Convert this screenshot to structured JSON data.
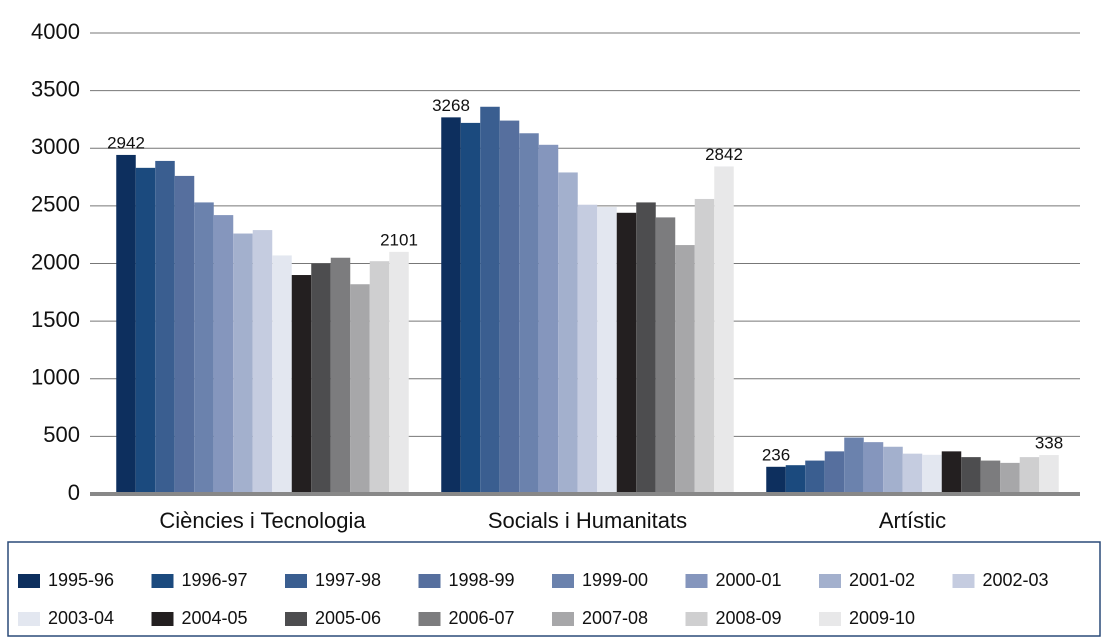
{
  "chart_data": {
    "type": "bar",
    "categories": [
      "Ciències i Tecnologia",
      "Socials i Humanitats",
      "Artístic"
    ],
    "series": [
      {
        "name": "1995-96",
        "color": "#0d2f5e",
        "values": [
          2942,
          3268,
          236
        ]
      },
      {
        "name": "1996-97",
        "color": "#1b4a7e",
        "values": [
          2830,
          3220,
          250
        ]
      },
      {
        "name": "1997-98",
        "color": "#3a5e90",
        "values": [
          2890,
          3360,
          290
        ]
      },
      {
        "name": "1998-99",
        "color": "#566f9e",
        "values": [
          2760,
          3240,
          370
        ]
      },
      {
        "name": "1999-00",
        "color": "#6b82ad",
        "values": [
          2530,
          3130,
          490
        ]
      },
      {
        "name": "2000-01",
        "color": "#8596bd",
        "values": [
          2420,
          3030,
          450
        ]
      },
      {
        "name": "2001-02",
        "color": "#a3b0cd",
        "values": [
          2260,
          2790,
          410
        ]
      },
      {
        "name": "2002-03",
        "color": "#c5cce0",
        "values": [
          2290,
          2510,
          350
        ]
      },
      {
        "name": "2003-04",
        "color": "#e3e7f0",
        "values": [
          2070,
          2490,
          340
        ]
      },
      {
        "name": "2004-05",
        "color": "#231f20",
        "values": [
          1900,
          2440,
          370
        ]
      },
      {
        "name": "2005-06",
        "color": "#4d4d4f",
        "values": [
          2000,
          2530,
          320
        ]
      },
      {
        "name": "2006-07",
        "color": "#7c7c7e",
        "values": [
          2050,
          2400,
          290
        ]
      },
      {
        "name": "2007-08",
        "color": "#a7a7a9",
        "values": [
          1820,
          2160,
          270
        ]
      },
      {
        "name": "2008-09",
        "color": "#cfcfd0",
        "values": [
          2020,
          2560,
          320
        ]
      },
      {
        "name": "2009-10",
        "color": "#e8e8e9",
        "values": [
          2101,
          2842,
          338
        ]
      }
    ],
    "ylim": [
      0,
      4000
    ],
    "yticks": [
      0,
      500,
      1000,
      1500,
      2000,
      2500,
      3000,
      3500,
      4000
    ],
    "grid": true
  }
}
